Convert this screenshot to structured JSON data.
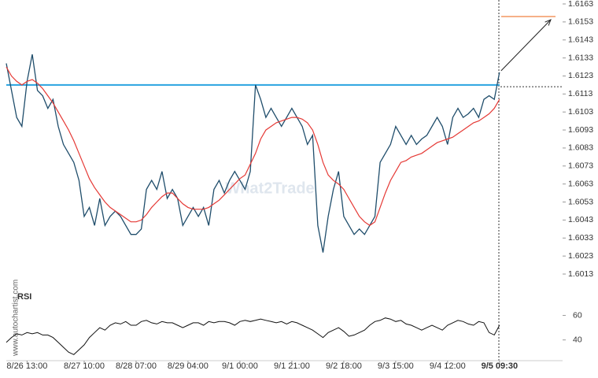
{
  "chart_data": {
    "type": "line",
    "side_text": "www.autochartist.com",
    "watermark": "What2Trade",
    "xlim": [
      0,
      107
    ],
    "xticks": [
      {
        "value": 4,
        "label": "8/26 13:00"
      },
      {
        "value": 15,
        "label": "8/27 10:00"
      },
      {
        "value": 25,
        "label": "8/28 07:00"
      },
      {
        "value": 35,
        "label": "8/29 04:00"
      },
      {
        "value": 45,
        "label": "9/1 00:00"
      },
      {
        "value": 55,
        "label": "9/1 21:00"
      },
      {
        "value": 65,
        "label": "9/2 18:00"
      },
      {
        "value": 75,
        "label": "9/3 15:00"
      },
      {
        "value": 85,
        "label": "9/4 12:00"
      },
      {
        "value": 95,
        "label": "9/5 09:30"
      }
    ],
    "ylim": [
      1.6013,
      1.6163
    ],
    "yticks": [
      1.6163,
      1.6153,
      1.6143,
      1.6133,
      1.6123,
      1.6113,
      1.6103,
      1.6093,
      1.6083,
      1.6073,
      1.6063,
      1.6053,
      1.6043,
      1.6033,
      1.6023,
      1.6013
    ],
    "series": [
      {
        "name": "Price",
        "color": "#1f4d6b",
        "values": [
          1.613,
          1.6115,
          1.61,
          1.6095,
          1.612,
          1.6135,
          1.6115,
          1.6112,
          1.6105,
          1.611,
          1.6095,
          1.6085,
          1.608,
          1.6075,
          1.6065,
          1.6045,
          1.605,
          1.604,
          1.6055,
          1.604,
          1.6045,
          1.6048,
          1.6045,
          1.604,
          1.6035,
          1.6035,
          1.6038,
          1.606,
          1.6065,
          1.606,
          1.607,
          1.6055,
          1.606,
          1.6055,
          1.604,
          1.6045,
          1.605,
          1.6045,
          1.605,
          1.604,
          1.606,
          1.6065,
          1.6058,
          1.6065,
          1.607,
          1.6065,
          1.606,
          1.607,
          1.6118,
          1.611,
          1.61,
          1.6105,
          1.61,
          1.6095,
          1.61,
          1.6105,
          1.61,
          1.6095,
          1.6085,
          1.609,
          1.604,
          1.6025,
          1.6045,
          1.606,
          1.607,
          1.6045,
          1.604,
          1.6035,
          1.6038,
          1.6035,
          1.604,
          1.6045,
          1.6075,
          1.608,
          1.6085,
          1.6095,
          1.609,
          1.6085,
          1.609,
          1.6085,
          1.6088,
          1.609,
          1.6095,
          1.61,
          1.6095,
          1.6085,
          1.61,
          1.6105,
          1.61,
          1.6102,
          1.6105,
          1.61,
          1.611,
          1.6112,
          1.611,
          1.6125
        ]
      },
      {
        "name": "MA",
        "color": "#e53935",
        "values": [
          1.6128,
          1.6123,
          1.612,
          1.6118,
          1.612,
          1.6121,
          1.6119,
          1.6116,
          1.6112,
          1.6108,
          1.6103,
          1.6098,
          1.6093,
          1.6087,
          1.608,
          1.6073,
          1.6066,
          1.6061,
          1.6057,
          1.6053,
          1.605,
          1.6048,
          1.6046,
          1.6044,
          1.6042,
          1.6042,
          1.6043,
          1.6046,
          1.605,
          1.6053,
          1.6056,
          1.6058,
          1.6058,
          1.6055,
          1.6052,
          1.605,
          1.6049,
          1.6049,
          1.6049,
          1.605,
          1.6052,
          1.6054,
          1.6057,
          1.606,
          1.6063,
          1.6066,
          1.6068,
          1.6074,
          1.608,
          1.6088,
          1.6093,
          1.6095,
          1.6097,
          1.6098,
          1.6099,
          1.61,
          1.61,
          1.6099,
          1.6097,
          1.6093,
          1.6085,
          1.6075,
          1.6068,
          1.6065,
          1.6063,
          1.606,
          1.6055,
          1.605,
          1.6045,
          1.6042,
          1.604,
          1.6042,
          1.605,
          1.6058,
          1.6065,
          1.607,
          1.6075,
          1.6076,
          1.6078,
          1.6079,
          1.608,
          1.6082,
          1.6084,
          1.6086,
          1.6087,
          1.6088,
          1.6089,
          1.6091,
          1.6093,
          1.6095,
          1.6097,
          1.6098,
          1.61,
          1.6102,
          1.6105,
          1.611
        ]
      }
    ],
    "levels": [
      {
        "value": 1.6118,
        "color": "#29a3e0"
      },
      {
        "value": 1.6156,
        "color": "#f08040"
      }
    ],
    "rsi": {
      "title": "RSI",
      "color": "#111111",
      "ylim": [
        25,
        70
      ],
      "yticks": [
        60,
        40
      ],
      "values": [
        38,
        42,
        45,
        44,
        46,
        45,
        46,
        44,
        44,
        42,
        38,
        34,
        30,
        28,
        32,
        36,
        42,
        46,
        50,
        48,
        52,
        54,
        53,
        55,
        52,
        52,
        55,
        56,
        54,
        53,
        55,
        54,
        54,
        52,
        50,
        52,
        54,
        54,
        52,
        55,
        54,
        55,
        55,
        54,
        52,
        55,
        56,
        55,
        56,
        57,
        56,
        55,
        54,
        55,
        53,
        55,
        54,
        52,
        50,
        48,
        45,
        42,
        46,
        48,
        50,
        47,
        43,
        44,
        46,
        48,
        52,
        55,
        56,
        58,
        57,
        55,
        56,
        53,
        52,
        50,
        48,
        50,
        52,
        50,
        48,
        52,
        54,
        56,
        55,
        53,
        52,
        55,
        54,
        46,
        44,
        52
      ]
    }
  }
}
